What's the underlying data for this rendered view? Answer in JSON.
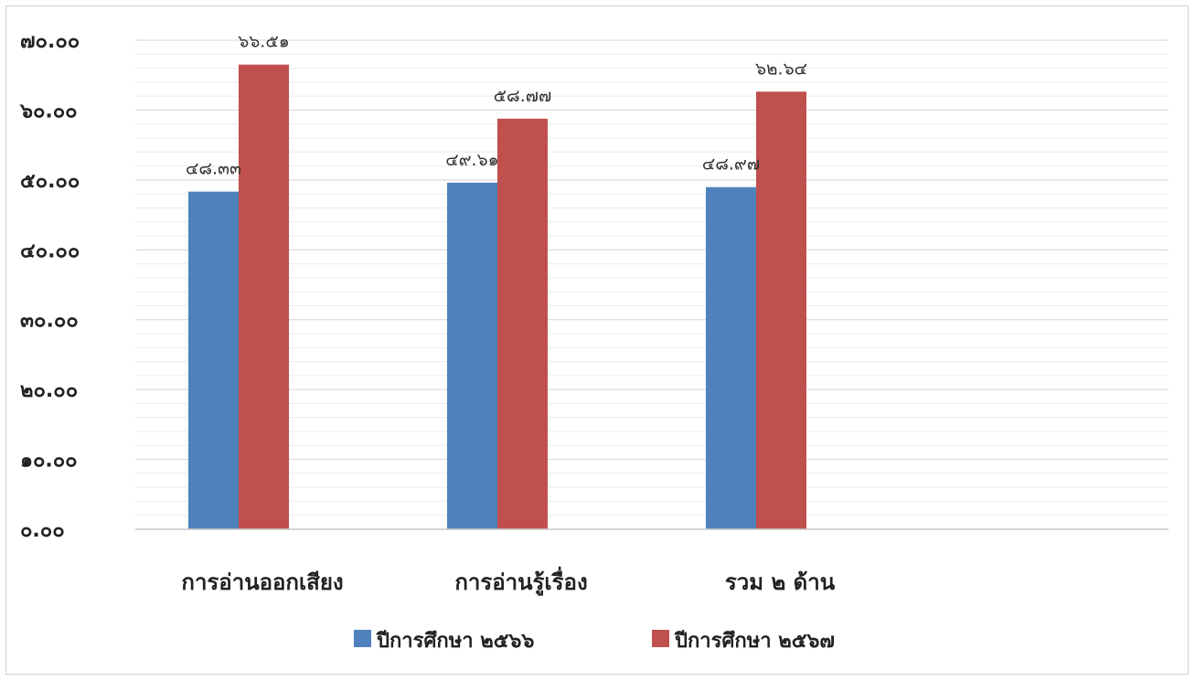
{
  "chart_data": {
    "type": "bar",
    "categories": [
      "การอ่านออกเสียง",
      "การอ่านรู้เรื่อง",
      "รวม ๒ ด้าน"
    ],
    "series": [
      {
        "name": "ปีการศึกษา ๒๕๖๖",
        "color": "#4F81BD",
        "values": [
          48.33,
          49.61,
          48.97
        ],
        "labels": [
          "๔๘.๓๓",
          "๔๙.๖๑",
          "๔๘.๙๗"
        ]
      },
      {
        "name": "ปีการศึกษา ๒๕๖๗",
        "color": "#C0504D",
        "values": [
          66.51,
          58.77,
          62.64
        ],
        "labels": [
          "๖๖.๕๑",
          "๕๘.๗๗",
          "๖๒.๖๔"
        ]
      }
    ],
    "ylim": [
      0,
      70
    ],
    "yticks": [
      0,
      10,
      20,
      30,
      40,
      50,
      60,
      70
    ],
    "ytick_labels": [
      "๐.๐๐",
      "๑๐.๐๐",
      "๒๐.๐๐",
      "๓๐.๐๐",
      "๔๐.๐๐",
      "๕๐.๐๐",
      "๖๐.๐๐",
      "๗๐.๐๐"
    ],
    "grid": true,
    "legend_position": "bottom"
  }
}
